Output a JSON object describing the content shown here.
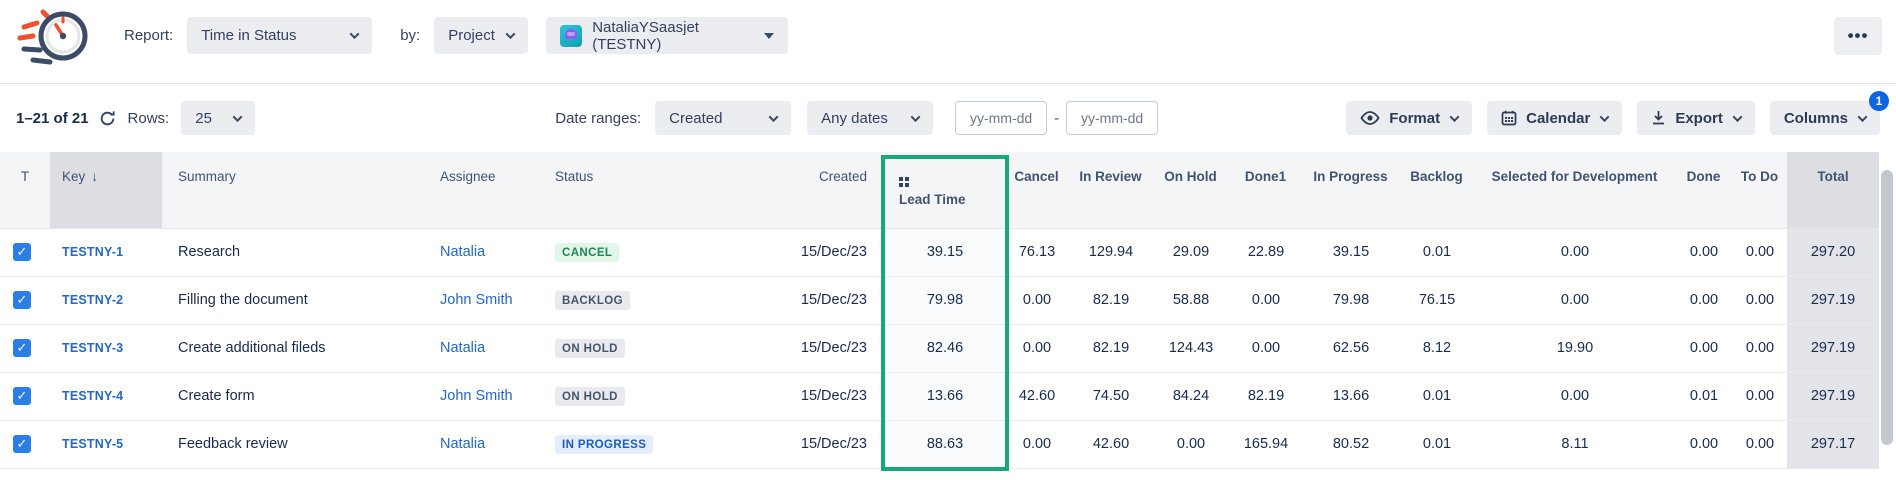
{
  "header": {
    "report_label": "Report:",
    "report_dropdown": "Time in Status",
    "by_label": "by:",
    "by_dropdown": "Project",
    "project_dropdown": "NataliaYSaasjet (TESTNY)",
    "more_icon": "•••"
  },
  "toolbar": {
    "pagination_text": "1–21 of 21",
    "rows_label": "Rows:",
    "rows_dropdown": "25",
    "date_ranges_label": "Date ranges:",
    "date_field_dropdown": "Created",
    "date_preset_dropdown": "Any dates",
    "date_from_placeholder": "yy-mm-dd",
    "date_separator": "-",
    "date_to_placeholder": "yy-mm-dd",
    "format_button": "Format",
    "calendar_button": "Calendar",
    "export_button": "Export",
    "columns_button": "Columns",
    "columns_badge": "1"
  },
  "table": {
    "sort_icon": "↓",
    "check_icon": "✓",
    "columns": [
      {
        "key": "t",
        "label": "T"
      },
      {
        "key": "key",
        "label": "Key"
      },
      {
        "key": "summary",
        "label": "Summary"
      },
      {
        "key": "assignee",
        "label": "Assignee"
      },
      {
        "key": "status",
        "label": "Status"
      },
      {
        "key": "created",
        "label": "Created"
      },
      {
        "key": "lead_time",
        "label": "Lead Time"
      },
      {
        "key": "cancel",
        "label": "Cancel"
      },
      {
        "key": "in_review",
        "label": "In Review"
      },
      {
        "key": "on_hold",
        "label": "On Hold"
      },
      {
        "key": "done1",
        "label": "Done1"
      },
      {
        "key": "in_progress",
        "label": "In Progress"
      },
      {
        "key": "backlog",
        "label": "Backlog"
      },
      {
        "key": "selected_for_development",
        "label": "Selected for Development"
      },
      {
        "key": "done",
        "label": "Done"
      },
      {
        "key": "to_do",
        "label": "To Do"
      },
      {
        "key": "total",
        "label": "Total"
      }
    ],
    "rows": [
      {
        "key": "TESTNY-1",
        "summary": "Research",
        "assignee": "Natalia",
        "status": {
          "label": "CANCEL",
          "type": "success"
        },
        "created": "15/Dec/23",
        "lead_time": "39.15",
        "cancel": "76.13",
        "in_review": "129.94",
        "on_hold": "29.09",
        "done1": "22.89",
        "in_progress": "39.15",
        "backlog": "0.01",
        "selected_for_development": "0.00",
        "done": "0.00",
        "to_do": "0.00",
        "total": "297.20"
      },
      {
        "key": "TESTNY-2",
        "summary": "Filling the document",
        "assignee": "John Smith",
        "status": {
          "label": "BACKLOG",
          "type": "default"
        },
        "created": "15/Dec/23",
        "lead_time": "79.98",
        "cancel": "0.00",
        "in_review": "82.19",
        "on_hold": "58.88",
        "done1": "0.00",
        "in_progress": "79.98",
        "backlog": "76.15",
        "selected_for_development": "0.00",
        "done": "0.00",
        "to_do": "0.00",
        "total": "297.19"
      },
      {
        "key": "TESTNY-3",
        "summary": "Create additional fileds",
        "assignee": "Natalia",
        "status": {
          "label": "ON HOLD",
          "type": "default"
        },
        "created": "15/Dec/23",
        "lead_time": "82.46",
        "cancel": "0.00",
        "in_review": "82.19",
        "on_hold": "124.43",
        "done1": "0.00",
        "in_progress": "62.56",
        "backlog": "8.12",
        "selected_for_development": "19.90",
        "done": "0.00",
        "to_do": "0.00",
        "total": "297.19"
      },
      {
        "key": "TESTNY-4",
        "summary": "Create form",
        "assignee": "John Smith",
        "status": {
          "label": "ON HOLD",
          "type": "default"
        },
        "created": "15/Dec/23",
        "lead_time": "13.66",
        "cancel": "42.60",
        "in_review": "74.50",
        "on_hold": "84.24",
        "done1": "82.19",
        "in_progress": "13.66",
        "backlog": "0.01",
        "selected_for_development": "0.00",
        "done": "0.01",
        "to_do": "0.00",
        "total": "297.19"
      },
      {
        "key": "TESTNY-5",
        "summary": "Feedback review",
        "assignee": "Natalia",
        "status": {
          "label": "IN PROGRESS",
          "type": "inprogress"
        },
        "created": "15/Dec/23",
        "lead_time": "88.63",
        "cancel": "0.00",
        "in_review": "42.60",
        "on_hold": "0.00",
        "done1": "165.94",
        "in_progress": "80.52",
        "backlog": "0.01",
        "selected_for_development": "8.11",
        "done": "0.00",
        "to_do": "0.00",
        "total": "297.17"
      }
    ]
  },
  "colors": {
    "highlight_green": "#17A97C",
    "link_blue": "#2368C4",
    "badge_blue": "#0C66E4"
  }
}
